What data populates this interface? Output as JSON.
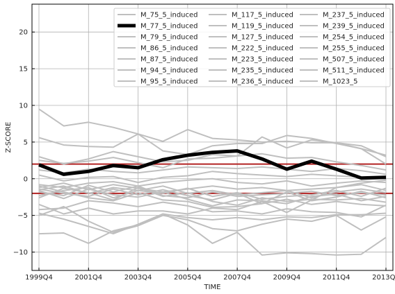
{
  "chart_data": {
    "type": "line",
    "xlabel": "TIME",
    "ylabel": "Z-SCORE",
    "ylim": [
      -12.5,
      23.8
    ],
    "yticks": [
      -10,
      -5,
      0,
      5,
      10,
      15,
      20
    ],
    "xtick_labels": [
      "1999Q4",
      "2001Q4",
      "2003Q4",
      "2005Q4",
      "2007Q4",
      "2009Q4",
      "2011Q4",
      "2013Q4"
    ],
    "x": [
      "1999Q4",
      "2000Q4",
      "2001Q4",
      "2002Q4",
      "2003Q4",
      "2004Q4",
      "2005Q4",
      "2006Q4",
      "2007Q4",
      "2008Q4",
      "2009Q4",
      "2010Q4",
      "2011Q4",
      "2012Q4",
      "2013Q4"
    ],
    "grid": true,
    "legend_position": "top-right",
    "legend_columns": 3,
    "colors": {
      "highlight": "#000000",
      "other": "#bfbfbf",
      "threshold": "#b22222",
      "grid": "#b0b0b0"
    },
    "thresholds": [
      2,
      -2
    ],
    "highlight_series": "M_77_5_induced",
    "series": [
      {
        "name": "M_75_5_induced",
        "values": [
          9.5,
          7.2,
          7.7,
          7.0,
          6.1,
          5.1,
          6.7,
          5.5,
          5.3,
          5.0,
          5.1,
          4.9,
          4.9,
          4.5,
          3.0
        ]
      },
      {
        "name": "M_77_5_induced",
        "values": [
          1.9,
          0.6,
          1.0,
          1.8,
          1.5,
          2.6,
          3.2,
          3.6,
          3.8,
          2.7,
          1.3,
          2.4,
          1.3,
          0.1,
          0.2
        ]
      },
      {
        "name": "M_79_5_induced",
        "values": [
          5.6,
          4.6,
          4.4,
          4.3,
          6.1,
          3.8,
          3.3,
          4.5,
          4.8,
          4.8,
          5.9,
          5.5,
          4.8,
          4.1,
          3.2
        ]
      },
      {
        "name": "M_86_5_induced",
        "values": [
          3.0,
          2.0,
          2.7,
          3.7,
          3.0,
          2.3,
          2.5,
          3.3,
          3.1,
          5.7,
          4.2,
          5.3,
          4.9,
          4.1,
          2.0
        ]
      },
      {
        "name": "M_87_5_induced",
        "values": [
          2.5,
          2.1,
          2.4,
          2.9,
          2.2,
          1.5,
          2.7,
          2.8,
          3.1,
          3.4,
          2.8,
          2.9,
          2.3,
          1.8,
          1.2
        ]
      },
      {
        "name": "M_94_5_induced",
        "values": [
          1.2,
          0.8,
          1.3,
          1.0,
          0.8,
          1.2,
          1.6,
          1.5,
          1.4,
          1.6,
          1.3,
          1.0,
          1.4,
          1.1,
          0.6
        ]
      },
      {
        "name": "M_95_5_induced",
        "values": [
          0.5,
          -0.3,
          0.2,
          0.3,
          -0.5,
          0.2,
          0.4,
          1.0,
          0.7,
          0.5,
          0.3,
          0.6,
          0.4,
          0.2,
          0.0
        ]
      },
      {
        "name": "M_117_5_induced",
        "values": [
          -0.8,
          -1.2,
          -0.6,
          -0.4,
          -1.0,
          -0.5,
          -0.2,
          0.0,
          -0.5,
          -0.7,
          -0.3,
          -1.0,
          -0.6,
          -0.3,
          -0.5
        ]
      },
      {
        "name": "M_119_5_induced",
        "values": [
          -1.2,
          -0.6,
          -1.5,
          -0.8,
          -1.3,
          -1.8,
          -1.4,
          -1.0,
          -1.4,
          -1.2,
          -1.6,
          -1.4,
          -1.2,
          -0.8,
          -1.6
        ]
      },
      {
        "name": "M_127_5_induced",
        "values": [
          -1.5,
          -1.0,
          -2.0,
          -1.2,
          -1.6,
          -1.0,
          -2.0,
          -1.6,
          -2.2,
          -1.9,
          -1.6,
          -2.6,
          -1.8,
          -1.4,
          -1.9
        ]
      },
      {
        "name": "M_222_5_induced",
        "values": [
          -1.8,
          -2.3,
          -0.9,
          -1.8,
          -1.0,
          -2.3,
          -2.6,
          -1.8,
          -2.4,
          -2.2,
          -2.0,
          -1.7,
          -2.3,
          -1.9,
          -2.2
        ]
      },
      {
        "name": "M_223_5_induced",
        "values": [
          -2.3,
          -1.6,
          -1.2,
          -2.6,
          -1.6,
          -2.0,
          -1.3,
          -2.4,
          -1.9,
          -2.8,
          -2.4,
          -2.2,
          -1.6,
          -2.4,
          -1.3
        ]
      },
      {
        "name": "M_235_5_induced",
        "values": [
          -1.4,
          -2.0,
          -2.4,
          -1.4,
          -2.2,
          -1.5,
          -2.3,
          -2.9,
          -2.0,
          -3.4,
          -1.8,
          -3.0,
          -2.5,
          -1.7,
          -2.6
        ]
      },
      {
        "name": "M_236_5_induced",
        "values": [
          -2.6,
          -1.3,
          -1.9,
          -2.9,
          -1.2,
          -2.4,
          -1.9,
          -3.1,
          -3.6,
          -2.6,
          -3.1,
          -2.8,
          -2.9,
          -2.7,
          -3.2
        ]
      },
      {
        "name": "M_237_5_induced",
        "values": [
          -1.6,
          -2.7,
          -1.4,
          -2.2,
          -2.5,
          -1.8,
          -2.8,
          -3.7,
          -2.9,
          -3.0,
          -3.4,
          -2.4,
          -2.1,
          -3.0,
          -2.4
        ]
      },
      {
        "name": "M_239_5_induced",
        "values": [
          -1.0,
          -1.8,
          -2.6,
          -3.0,
          -1.9,
          -2.9,
          -3.1,
          -3.9,
          -3.8,
          -3.4,
          -2.8,
          -3.5,
          -3.1,
          -3.5,
          -3.7
        ]
      },
      {
        "name": "M_254_5_induced",
        "values": [
          -3.5,
          -4.8,
          -4.0,
          -4.8,
          -4.4,
          -4.4,
          -4.8,
          -4.0,
          -4.2,
          -3.1,
          -4.6,
          -2.9,
          -1.2,
          -0.6,
          -0.2
        ]
      },
      {
        "name": "M_255_5_induced",
        "values": [
          -4.2,
          -4.0,
          -3.0,
          -3.3,
          -3.8,
          -3.2,
          -3.7,
          -4.5,
          -4.4,
          -4.8,
          -4.1,
          -4.5,
          -4.6,
          -5.2,
          -3.6
        ]
      },
      {
        "name": "M_507_5_induced",
        "values": [
          -4.7,
          -5.5,
          -6.5,
          -7.5,
          -6.2,
          -4.8,
          -5.3,
          -5.6,
          -5.3,
          -5.6,
          -5.2,
          -5.3,
          -4.9,
          -4.9,
          -4.7
        ]
      },
      {
        "name": "M_511_5_induced",
        "values": [
          -5.0,
          -3.8,
          -5.8,
          -7.3,
          -6.4,
          -5.0,
          -5.6,
          -6.8,
          -7.1,
          -6.2,
          -5.5,
          -5.8,
          -5.0,
          -7.0,
          -5.2
        ]
      },
      {
        "name": "M_1023_5",
        "values": [
          -7.5,
          -7.4,
          -8.8,
          -7.1,
          -6.3,
          -4.8,
          -6.3,
          -8.8,
          -7.3,
          -10.4,
          -10.1,
          -10.2,
          -10.4,
          -10.3,
          -8.0
        ]
      }
    ]
  }
}
